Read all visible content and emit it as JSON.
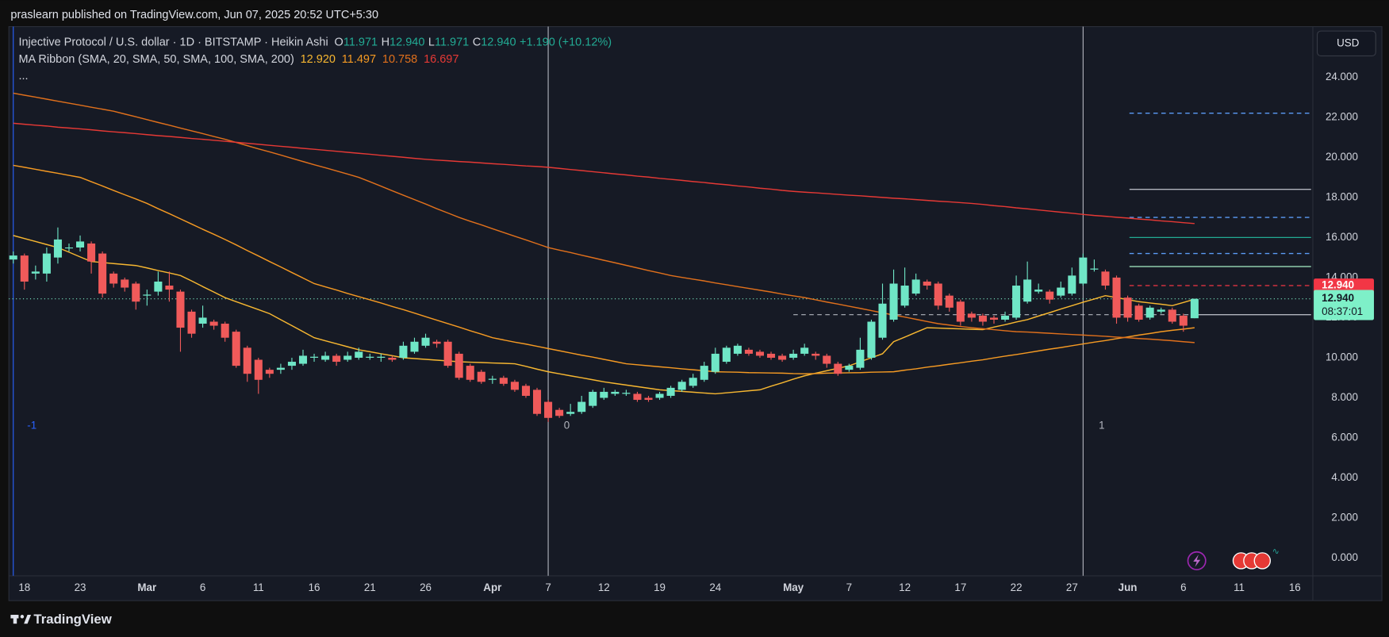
{
  "page": {
    "published": "praslearn published on TradingView.com, Jun 07, 2025 20:52 UTC+5:30",
    "brand": "TradingView",
    "currency": "USD"
  },
  "chart_data": {
    "type": "candlestick",
    "legend": {
      "symbol": "Injective Protocol / U.S. dollar · 1D · BITSTAMP · Heikin Ashi",
      "ohlc": [
        {
          "key": "O",
          "value": "11.971"
        },
        {
          "key": "H",
          "value": "12.940"
        },
        {
          "key": "L",
          "value": "11.971"
        },
        {
          "key": "C",
          "value": "12.940"
        }
      ],
      "change": "+1.190 (+10.12%)",
      "indicator": "MA Ribbon (SMA, 20, SMA, 50, SMA, 100, SMA, 200)",
      "more": "..."
    },
    "categories": [
      null,
      "18",
      null,
      null,
      null,
      null,
      "23",
      null,
      null,
      null,
      null,
      null,
      "Mar",
      null,
      null,
      null,
      null,
      "6",
      null,
      null,
      null,
      null,
      "11",
      null,
      null,
      null,
      null,
      "16",
      null,
      null,
      null,
      null,
      "21",
      null,
      null,
      null,
      null,
      "26",
      null,
      null,
      null,
      null,
      null,
      "Apr",
      null,
      null,
      null,
      null,
      "7",
      null,
      null,
      null,
      null,
      "12",
      null,
      null,
      null,
      null,
      "19",
      null,
      null,
      null,
      null,
      "24",
      null,
      null,
      null,
      null,
      null,
      null,
      "May",
      null,
      null,
      null,
      null,
      "7",
      null,
      null,
      null,
      null,
      "12",
      null,
      null,
      null,
      null,
      "17",
      null,
      null,
      null,
      null,
      "22",
      null,
      null,
      null,
      null,
      "27",
      null,
      null,
      null,
      null,
      "Jun",
      null,
      null,
      null,
      null,
      "6",
      null,
      null,
      null,
      null,
      "11",
      null,
      null,
      null,
      null,
      "16",
      null
    ],
    "open": [
      14.9,
      15.1,
      14.2,
      14.2,
      15.0,
      15.5,
      15.5,
      15.7,
      15.2,
      14.2,
      13.9,
      13.7,
      13.1,
      13.3,
      13.6,
      13.3,
      12.3,
      11.7,
      11.8,
      11.7,
      11.3,
      10.5,
      9.9,
      9.4,
      9.4,
      9.6,
      9.7,
      10.0,
      9.9,
      10.1,
      9.9,
      10.0,
      10.0,
      10.0,
      10.0,
      10.0,
      10.3,
      10.6,
      10.8,
      10.8,
      10.2,
      9.6,
      9.3,
      8.9,
      9.0,
      8.8,
      8.6,
      8.4,
      7.8,
      7.4,
      7.2,
      7.3,
      7.6,
      8.0,
      8.2,
      8.2,
      8.2,
      8.0,
      8.0,
      8.1,
      8.4,
      8.6,
      8.9,
      9.3,
      9.8,
      10.2,
      10.4,
      10.3,
      10.2,
      10.1,
      10.0,
      10.2,
      10.2,
      10.1,
      9.7,
      9.4,
      9.5,
      10.0,
      11.0,
      11.9,
      12.6,
      13.2,
      13.8,
      13.7,
      13.1,
      12.8,
      12.2,
      12.1,
      12.0,
      11.9,
      12.0,
      12.8,
      13.3,
      13.3,
      13.1,
      13.2,
      13.7,
      14.4,
      14.3,
      14.0,
      13.0,
      12.6,
      12.0,
      12.3,
      12.4,
      12.1,
      11.971,
      null,
      null,
      null,
      null,
      null,
      null,
      null,
      null,
      null,
      null
    ],
    "high": [
      15.3,
      15.2,
      14.6,
      15.5,
      16.5,
      15.7,
      16.1,
      15.8,
      15.3,
      14.3,
      14.0,
      13.8,
      13.4,
      14.3,
      14.3,
      13.4,
      12.4,
      12.6,
      11.9,
      11.8,
      11.4,
      10.6,
      10.0,
      9.5,
      9.7,
      10.0,
      10.4,
      10.2,
      10.3,
      10.2,
      10.3,
      10.5,
      10.2,
      10.2,
      10.1,
      10.8,
      11.0,
      11.2,
      10.9,
      10.9,
      10.3,
      9.7,
      9.4,
      9.1,
      9.1,
      8.9,
      8.7,
      8.5,
      7.9,
      7.5,
      7.7,
      8.1,
      8.4,
      8.5,
      8.4,
      8.4,
      8.3,
      8.1,
      8.3,
      8.6,
      8.9,
      9.2,
      9.8,
      10.5,
      10.6,
      10.7,
      10.5,
      10.4,
      10.3,
      10.2,
      10.4,
      10.7,
      10.3,
      10.2,
      9.8,
      9.7,
      11.0,
      11.9,
      13.7,
      14.4,
      14.5,
      14.2,
      13.9,
      13.8,
      13.2,
      12.9,
      12.3,
      12.2,
      12.1,
      12.3,
      14.1,
      14.8,
      13.7,
      13.4,
      13.8,
      14.5,
      15.2,
      14.9,
      14.4,
      14.1,
      13.1,
      12.7,
      12.6,
      12.5,
      12.5,
      12.2,
      12.94,
      null,
      null,
      null,
      null,
      null,
      null,
      null,
      null,
      null,
      null
    ],
    "low": [
      14.7,
      13.4,
      13.9,
      13.8,
      14.7,
      15.3,
      15.3,
      14.2,
      13.0,
      13.5,
      13.3,
      12.4,
      12.6,
      13.1,
      12.8,
      10.3,
      11.0,
      11.5,
      11.4,
      10.8,
      9.5,
      8.8,
      8.2,
      9.0,
      9.2,
      9.4,
      9.6,
      9.8,
      9.8,
      9.6,
      9.8,
      9.9,
      9.9,
      9.8,
      9.8,
      9.9,
      10.2,
      10.5,
      10.5,
      9.5,
      8.9,
      8.8,
      8.7,
      8.7,
      8.6,
      8.3,
      8.0,
      7.1,
      6.8,
      7.0,
      7.1,
      7.2,
      7.5,
      7.9,
      8.1,
      8.1,
      7.8,
      7.8,
      7.9,
      8.0,
      8.3,
      8.5,
      8.8,
      9.2,
      9.7,
      10.1,
      10.1,
      10.0,
      9.9,
      9.8,
      9.9,
      10.1,
      9.9,
      9.5,
      9.1,
      9.3,
      9.4,
      9.9,
      10.9,
      11.8,
      12.5,
      13.1,
      13.4,
      12.4,
      12.3,
      11.6,
      11.8,
      11.6,
      11.7,
      11.8,
      11.9,
      12.7,
      13.2,
      12.7,
      13.0,
      13.1,
      13.6,
      14.3,
      13.4,
      11.7,
      11.8,
      11.8,
      11.9,
      12.2,
      11.7,
      11.3,
      11.971,
      null,
      null,
      null,
      null,
      null,
      null,
      null,
      null,
      null,
      null
    ],
    "close": [
      15.1,
      13.8,
      14.3,
      15.2,
      15.9,
      15.5,
      15.8,
      14.8,
      13.2,
      13.7,
      13.5,
      12.8,
      13.15,
      13.8,
      13.4,
      11.5,
      11.2,
      12.0,
      11.6,
      11.0,
      9.6,
      9.2,
      8.9,
      9.2,
      9.5,
      9.8,
      10.1,
      10.05,
      10.1,
      9.8,
      10.1,
      10.3,
      10.05,
      10.05,
      9.9,
      10.6,
      10.8,
      11.0,
      10.7,
      9.6,
      9.0,
      8.9,
      8.8,
      8.95,
      8.7,
      8.4,
      8.1,
      7.2,
      7.0,
      7.1,
      7.3,
      7.8,
      8.3,
      8.3,
      8.3,
      8.25,
      7.9,
      7.9,
      8.2,
      8.5,
      8.8,
      9.0,
      9.6,
      10.2,
      10.5,
      10.6,
      10.2,
      10.1,
      10.0,
      9.9,
      10.2,
      10.5,
      10.1,
      9.7,
      9.2,
      9.6,
      10.4,
      11.8,
      12.7,
      13.7,
      13.6,
      13.9,
      13.6,
      12.6,
      12.5,
      11.8,
      12.0,
      11.8,
      11.9,
      12.1,
      13.6,
      13.9,
      13.4,
      12.9,
      13.5,
      14.1,
      15.0,
      14.45,
      13.6,
      12.0,
      12.0,
      11.9,
      12.5,
      12.4,
      11.8,
      11.6,
      12.94,
      null,
      null,
      null,
      null,
      null,
      null,
      null,
      null,
      null,
      null
    ],
    "up_color": "#6fe6c6",
    "down_color": "#f05a5a",
    "series": [
      {
        "name": "SMA 20",
        "legend_value": "12.920",
        "color": "#f7b731",
        "values": [
          16.1,
          15.95,
          15.8,
          15.65,
          15.5,
          15.27,
          15.03,
          14.8,
          14.75,
          14.7,
          14.65,
          14.6,
          14.48,
          14.35,
          14.23,
          14.1,
          13.83,
          13.55,
          13.28,
          13.0,
          12.8,
          12.6,
          12.4,
          12.2,
          11.9,
          11.6,
          11.3,
          11.0,
          10.85,
          10.7,
          10.55,
          10.4,
          10.3,
          10.2,
          10.1,
          10.0,
          9.96,
          9.92,
          9.88,
          9.84,
          9.8,
          9.78,
          9.76,
          9.74,
          9.72,
          9.7,
          9.57,
          9.43,
          9.3,
          9.2,
          9.1,
          9.0,
          8.9,
          8.8,
          8.72,
          8.64,
          8.56,
          8.48,
          8.4,
          8.36,
          8.32,
          8.28,
          8.24,
          8.2,
          8.25,
          8.3,
          8.35,
          8.4,
          8.58,
          8.75,
          8.93,
          9.1,
          9.23,
          9.35,
          9.48,
          9.6,
          9.8,
          10.0,
          10.2,
          10.8,
          11.03,
          11.27,
          11.5,
          11.48,
          11.46,
          11.44,
          11.42,
          11.4,
          11.53,
          11.65,
          11.78,
          11.9,
          12.08,
          12.25,
          12.43,
          12.6,
          12.77,
          12.93,
          13.1,
          13.0,
          12.9,
          12.8,
          12.73,
          12.67,
          12.6,
          12.76,
          12.92,
          null,
          null,
          null,
          null,
          null,
          null,
          null,
          null,
          null,
          null
        ]
      },
      {
        "name": "SMA 50",
        "legend_value": "11.497",
        "color": "#f59a23",
        "values": [
          19.6,
          19.5,
          19.4,
          19.3,
          19.2,
          19.1,
          19.0,
          18.78,
          18.57,
          18.35,
          18.13,
          17.92,
          17.7,
          17.44,
          17.19,
          16.93,
          16.67,
          16.41,
          16.16,
          15.9,
          15.63,
          15.35,
          15.08,
          14.8,
          14.53,
          14.25,
          13.98,
          13.7,
          13.54,
          13.38,
          13.21,
          13.05,
          12.89,
          12.73,
          12.56,
          12.4,
          12.23,
          12.05,
          11.88,
          11.7,
          11.53,
          11.35,
          11.18,
          11.0,
          10.89,
          10.78,
          10.68,
          10.57,
          10.46,
          10.35,
          10.24,
          10.13,
          10.03,
          9.92,
          9.81,
          9.7,
          9.65,
          9.6,
          9.55,
          9.5,
          9.45,
          9.4,
          9.35,
          9.3,
          9.29,
          9.28,
          9.26,
          9.25,
          9.24,
          9.23,
          9.21,
          9.2,
          9.21,
          9.23,
          9.24,
          9.25,
          9.26,
          9.28,
          9.29,
          9.3,
          9.38,
          9.45,
          9.53,
          9.6,
          9.68,
          9.75,
          9.83,
          9.9,
          9.99,
          10.08,
          10.16,
          10.25,
          10.34,
          10.43,
          10.51,
          10.6,
          10.69,
          10.78,
          10.86,
          10.95,
          11.04,
          11.13,
          11.21,
          11.3,
          11.37,
          11.43,
          11.497,
          null,
          null,
          null,
          null,
          null,
          null,
          null,
          null,
          null,
          null
        ]
      },
      {
        "name": "SMA 100",
        "legend_value": "10.758",
        "color": "#e0701c",
        "values": [
          23.2,
          23.1,
          23.0,
          22.9,
          22.8,
          22.7,
          22.6,
          22.5,
          22.4,
          22.3,
          22.16,
          22.02,
          21.88,
          21.74,
          21.6,
          21.46,
          21.32,
          21.18,
          21.04,
          20.9,
          20.74,
          20.58,
          20.42,
          20.27,
          20.11,
          19.95,
          19.79,
          19.63,
          19.48,
          19.32,
          19.16,
          19.0,
          18.78,
          18.56,
          18.33,
          18.11,
          17.89,
          17.67,
          17.44,
          17.22,
          17.0,
          16.81,
          16.63,
          16.44,
          16.25,
          16.06,
          15.88,
          15.69,
          15.5,
          15.37,
          15.25,
          15.12,
          14.99,
          14.86,
          14.74,
          14.61,
          14.48,
          14.35,
          14.23,
          14.1,
          14.01,
          13.92,
          13.83,
          13.73,
          13.64,
          13.55,
          13.46,
          13.37,
          13.28,
          13.18,
          13.09,
          13.0,
          12.89,
          12.78,
          12.68,
          12.57,
          12.46,
          12.35,
          12.24,
          12.13,
          12.03,
          11.92,
          11.81,
          11.7,
          11.63,
          11.56,
          11.5,
          11.45,
          11.4,
          11.35,
          11.3,
          11.28,
          11.25,
          11.22,
          11.19,
          11.16,
          11.13,
          11.1,
          11.07,
          11.03,
          11.0,
          10.96,
          10.93,
          10.89,
          10.85,
          10.8,
          10.758,
          null,
          null,
          null,
          null,
          null,
          null,
          null,
          null,
          null,
          null
        ]
      },
      {
        "name": "SMA 200",
        "legend_value": "16.697",
        "color": "#e53935",
        "values": [
          21.7,
          21.65,
          21.6,
          21.56,
          21.5,
          21.46,
          21.42,
          21.37,
          21.32,
          21.27,
          21.23,
          21.18,
          21.13,
          21.08,
          21.04,
          20.99,
          20.94,
          20.9,
          20.85,
          20.8,
          20.75,
          20.7,
          20.65,
          20.6,
          20.55,
          20.5,
          20.45,
          20.4,
          20.35,
          20.3,
          20.25,
          20.2,
          20.15,
          20.1,
          20.05,
          20.0,
          19.95,
          19.9,
          19.86,
          19.83,
          19.79,
          19.76,
          19.72,
          19.68,
          19.65,
          19.61,
          19.57,
          19.54,
          19.5,
          19.45,
          19.39,
          19.34,
          19.28,
          19.23,
          19.17,
          19.12,
          19.06,
          19.01,
          18.95,
          18.9,
          18.85,
          18.79,
          18.74,
          18.68,
          18.63,
          18.57,
          18.52,
          18.46,
          18.41,
          18.35,
          18.3,
          18.26,
          18.23,
          18.19,
          18.15,
          18.11,
          18.08,
          18.04,
          18.0,
          17.96,
          17.93,
          17.89,
          17.85,
          17.81,
          17.78,
          17.74,
          17.7,
          17.65,
          17.59,
          17.54,
          17.48,
          17.43,
          17.37,
          17.32,
          17.26,
          17.21,
          17.15,
          17.1,
          17.06,
          17.01,
          16.97,
          16.92,
          16.88,
          16.83,
          16.79,
          16.74,
          16.697,
          null,
          null,
          null,
          null,
          null,
          null,
          null,
          null,
          null,
          null
        ]
      }
    ],
    "hlines": [
      {
        "value": 22.2,
        "color": "#5b9cf6",
        "dashed": true
      },
      {
        "value": 18.4,
        "color": "#b2b5be",
        "dashed": false
      },
      {
        "value": 17.0,
        "color": "#5b9cf6",
        "dashed": true
      },
      {
        "value": 16.0,
        "color": "#22ab94",
        "dashed": false
      },
      {
        "value": 15.2,
        "color": "#5b9cf6",
        "dashed": true
      },
      {
        "value": 14.55,
        "color": "#a8f0c6",
        "dashed": false
      },
      {
        "value": 13.6,
        "color": "#f23645",
        "dashed": true
      },
      {
        "value": 12.15,
        "color": "#b2b5be",
        "dashed": false
      }
    ],
    "sessions": [
      {
        "index": 0,
        "label": "-1",
        "color": "#2962ff"
      },
      {
        "index": 48,
        "label": "0",
        "color": "#b2b5be"
      },
      {
        "index": 96,
        "label": "1",
        "color": "#b2b5be"
      }
    ],
    "tags": [
      {
        "label": "12.940",
        "color": "#f23645",
        "text_color": "#ffffff"
      },
      {
        "label": "12.940",
        "sub": "08:37:01",
        "color": "#7ef0c8",
        "text_color": "#131722"
      }
    ],
    "ylim": [
      -0.88,
      26.52
    ],
    "yticks": [
      {
        "value": 0,
        "label": "0.000"
      },
      {
        "value": 2,
        "label": "2.000"
      },
      {
        "value": 4,
        "label": "4.000"
      },
      {
        "value": 6,
        "label": "6.000"
      },
      {
        "value": 8,
        "label": "8.000"
      },
      {
        "value": 10,
        "label": "10.000"
      },
      {
        "value": 12,
        "label": "12.000"
      },
      {
        "value": 14,
        "label": "14.000"
      },
      {
        "value": 16,
        "label": "16.000"
      },
      {
        "value": 18,
        "label": "18.000"
      },
      {
        "value": 20,
        "label": "20.000"
      },
      {
        "value": 22,
        "label": "22.000"
      },
      {
        "value": 24,
        "label": "24.000"
      }
    ],
    "grid": false
  }
}
